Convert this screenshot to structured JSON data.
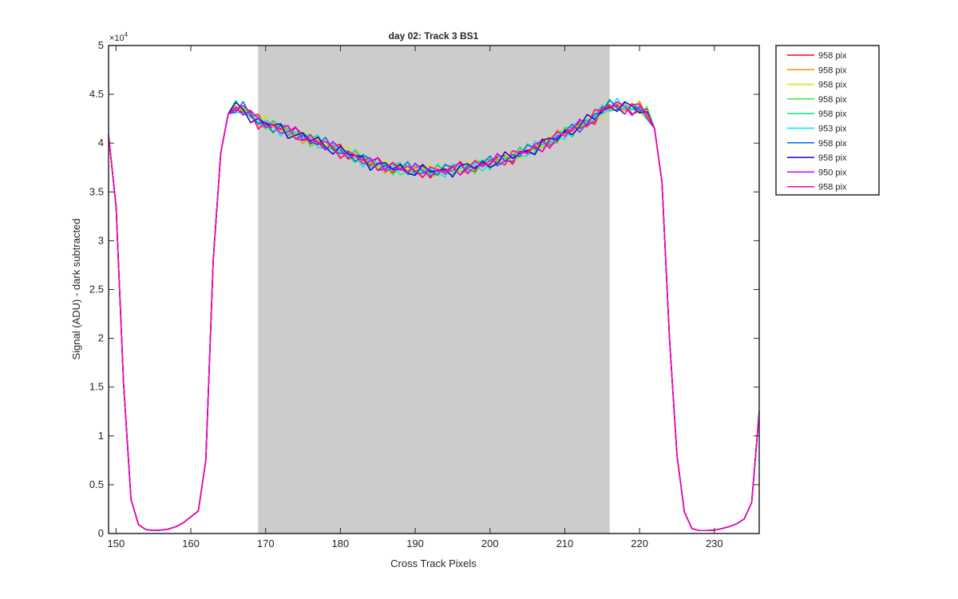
{
  "chart_data": {
    "type": "line",
    "title": "day 02: Track 3  BS1",
    "xlabel": "Cross Track Pixels",
    "ylabel": "Signal (ADU) - dark subtracted",
    "y_exponent_label": "×10",
    "y_exponent_power": "4",
    "xlim": [
      149,
      236
    ],
    "ylim": [
      0,
      5
    ],
    "xticks": [
      150,
      160,
      170,
      180,
      190,
      200,
      210,
      220,
      230
    ],
    "yticks": [
      "0",
      "0.5",
      "1",
      "1.5",
      "2",
      "2.5",
      "3",
      "3.5",
      "4",
      "4.5",
      "5"
    ],
    "shaded_region": {
      "x_start": 169,
      "x_end": 216,
      "color": "#cccccc"
    },
    "x": [
      149,
      150,
      151,
      152,
      153,
      154,
      155,
      156,
      157,
      158,
      159,
      160,
      161,
      162,
      163,
      164,
      165,
      166,
      167,
      168,
      169,
      170,
      171,
      172,
      173,
      174,
      175,
      176,
      177,
      178,
      179,
      180,
      181,
      182,
      183,
      184,
      185,
      186,
      187,
      188,
      189,
      190,
      191,
      192,
      193,
      194,
      195,
      196,
      197,
      198,
      199,
      200,
      201,
      202,
      203,
      204,
      205,
      206,
      207,
      208,
      209,
      210,
      211,
      212,
      213,
      214,
      215,
      216,
      217,
      218,
      219,
      220,
      221,
      222,
      223,
      224,
      225,
      226,
      227,
      228,
      229,
      230,
      231,
      232,
      233,
      234,
      235,
      236
    ],
    "base_values": [
      4.08,
      3.35,
      1.55,
      0.35,
      0.09,
      0.04,
      0.03,
      0.035,
      0.045,
      0.07,
      0.11,
      0.17,
      0.23,
      0.75,
      2.8,
      3.9,
      4.3,
      4.36,
      4.35,
      4.28,
      4.22,
      4.2,
      4.17,
      4.15,
      4.12,
      4.09,
      4.07,
      4.04,
      4.01,
      3.98,
      3.95,
      3.92,
      3.89,
      3.86,
      3.83,
      3.8,
      3.78,
      3.76,
      3.75,
      3.74,
      3.73,
      3.72,
      3.72,
      3.71,
      3.71,
      3.72,
      3.73,
      3.74,
      3.75,
      3.76,
      3.78,
      3.8,
      3.82,
      3.84,
      3.86,
      3.89,
      3.92,
      3.95,
      3.98,
      4.02,
      4.06,
      4.1,
      4.14,
      4.18,
      4.22,
      4.27,
      4.33,
      4.38,
      4.38,
      4.36,
      4.36,
      4.35,
      4.3,
      4.15,
      3.6,
      2.0,
      0.8,
      0.22,
      0.05,
      0.03,
      0.03,
      0.035,
      0.05,
      0.07,
      0.1,
      0.15,
      0.32,
      1.25
    ],
    "legend_location": "outside-top-right",
    "series": [
      {
        "name": "958 pix",
        "color": "#ff0000"
      },
      {
        "name": "958 pix",
        "color": "#ff8c00"
      },
      {
        "name": "958 pix",
        "color": "#d4e600"
      },
      {
        "name": "958 pix",
        "color": "#33ee33"
      },
      {
        "name": "958 pix",
        "color": "#00e68c"
      },
      {
        "name": "953 pix",
        "color": "#00e6e6"
      },
      {
        "name": "958 pix",
        "color": "#0066ff"
      },
      {
        "name": "958 pix",
        "color": "#1a00cc"
      },
      {
        "name": "950 pix",
        "color": "#cc00ff"
      },
      {
        "name": "958 pix",
        "color": "#ff00aa"
      }
    ]
  }
}
